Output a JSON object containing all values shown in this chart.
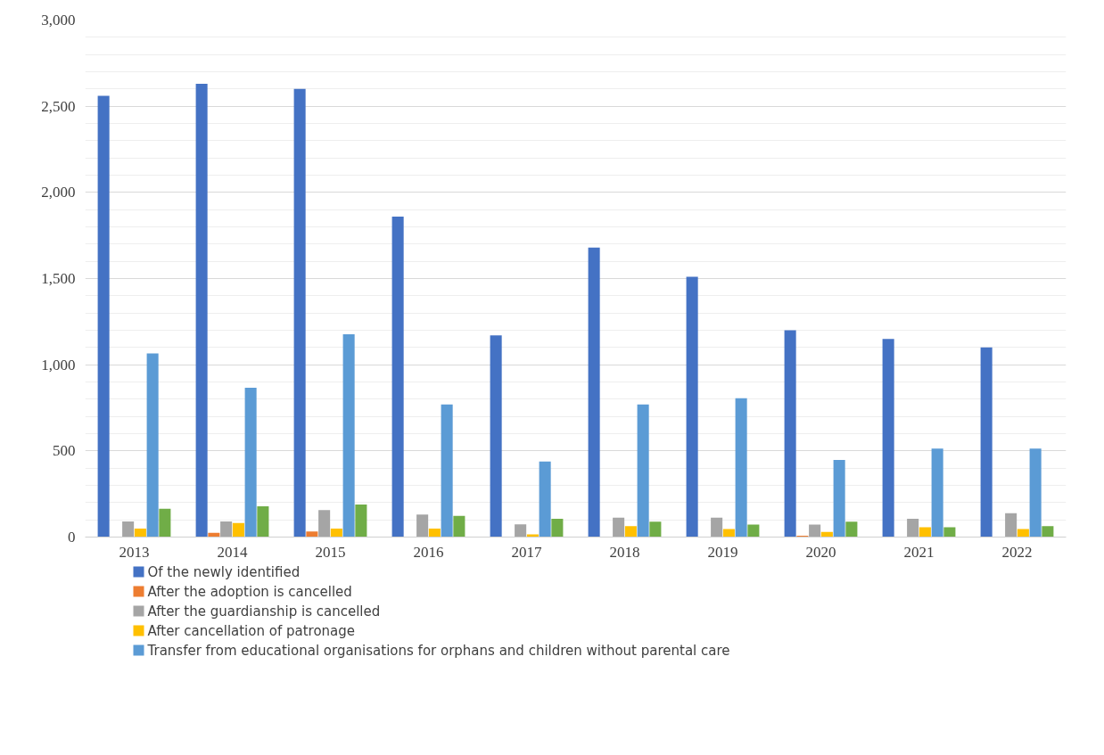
{
  "chart_data": {
    "type": "bar",
    "categories": [
      "2013",
      "2014",
      "2015",
      "2016",
      "2017",
      "2018",
      "2019",
      "2020",
      "2021",
      "2022"
    ],
    "series": [
      {
        "name": "Of the newly identified",
        "color": "#4472c4",
        "values": [
          2560,
          2630,
          2600,
          1860,
          1170,
          1680,
          1510,
          1200,
          1150,
          1100
        ]
      },
      {
        "name": "After the adoption is cancelled",
        "color": "#ed7d31",
        "values": [
          0,
          25,
          32,
          0,
          0,
          0,
          0,
          8,
          0,
          0
        ]
      },
      {
        "name": "After the guardianship is cancelled",
        "color": "#a5a5a5",
        "values": [
          90,
          90,
          157,
          130,
          74,
          113,
          113,
          72,
          106,
          138
        ]
      },
      {
        "name": "After cancellation of patronage",
        "color": "#ffc000",
        "values": [
          49,
          81,
          49,
          49,
          15,
          64,
          47,
          30,
          57,
          47
        ]
      },
      {
        "name": "Transfer from educational organisations for orphans and children without parental care",
        "color": "#5b9bd5",
        "values": [
          1065,
          866,
          1177,
          769,
          438,
          769,
          805,
          448,
          514,
          514
        ]
      },
      {
        "color": "#70ad47",
        "values": [
          164,
          179,
          189,
          123,
          106,
          89,
          72,
          89,
          57,
          64
        ]
      }
    ],
    "ylim": [
      0,
      3000
    ],
    "yticks": [
      0,
      {
        "value": 500,
        "label": "500"
      },
      {
        "value": 1000,
        "label": "1,000"
      },
      {
        "value": 1500,
        "label": "1,500"
      },
      {
        "value": 2000,
        "label": "2,000"
      },
      {
        "value": 2500,
        "label": "2,500"
      },
      {
        "value": 3000,
        "label": "3,000"
      }
    ],
    "grid": "y",
    "legend": "bottom"
  }
}
